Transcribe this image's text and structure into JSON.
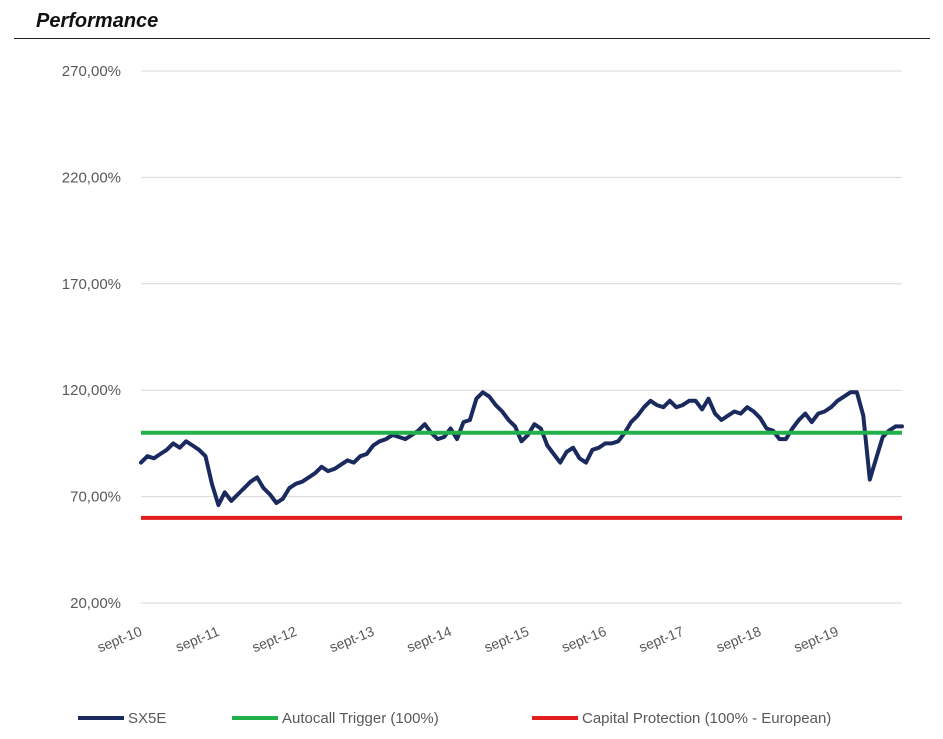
{
  "page_title": "Performance",
  "chart_data": {
    "type": "line",
    "title": "",
    "xlabel": "",
    "ylabel": "",
    "ylim": [
      20,
      270
    ],
    "xlim": [
      "2010-09",
      "2020-07"
    ],
    "grid": true,
    "legend_position": "bottom",
    "y_ticks": [
      "20,00%",
      "70,00%",
      "120,00%",
      "170,00%",
      "220,00%",
      "270,00%"
    ],
    "y_tick_values": [
      20,
      70,
      120,
      170,
      220,
      270
    ],
    "x_ticks": [
      "sept-10",
      "sept-11",
      "sept-12",
      "sept-13",
      "sept-14",
      "sept-15",
      "sept-16",
      "sept-17",
      "sept-18",
      "sept-19"
    ],
    "x_tick_dates": [
      "2010-09",
      "2011-09",
      "2012-09",
      "2013-09",
      "2014-09",
      "2015-09",
      "2016-09",
      "2017-09",
      "2018-09",
      "2019-09"
    ],
    "series": [
      {
        "name": "SX5E",
        "color": "#1b2a5e",
        "x": [
          "2010-09",
          "2010-10",
          "2010-11",
          "2010-12",
          "2011-01",
          "2011-02",
          "2011-03",
          "2011-04",
          "2011-05",
          "2011-06",
          "2011-07",
          "2011-08",
          "2011-09",
          "2011-10",
          "2011-11",
          "2011-12",
          "2012-01",
          "2012-02",
          "2012-03",
          "2012-04",
          "2012-05",
          "2012-06",
          "2012-07",
          "2012-08",
          "2012-09",
          "2012-10",
          "2012-11",
          "2012-12",
          "2013-01",
          "2013-02",
          "2013-03",
          "2013-04",
          "2013-05",
          "2013-06",
          "2013-07",
          "2013-08",
          "2013-09",
          "2013-10",
          "2013-11",
          "2013-12",
          "2014-01",
          "2014-02",
          "2014-03",
          "2014-04",
          "2014-05",
          "2014-06",
          "2014-07",
          "2014-08",
          "2014-09",
          "2014-10",
          "2014-11",
          "2014-12",
          "2015-01",
          "2015-02",
          "2015-03",
          "2015-04",
          "2015-05",
          "2015-06",
          "2015-07",
          "2015-08",
          "2015-09",
          "2015-10",
          "2015-11",
          "2015-12",
          "2016-01",
          "2016-02",
          "2016-03",
          "2016-04",
          "2016-05",
          "2016-06",
          "2016-07",
          "2016-08",
          "2016-09",
          "2016-10",
          "2016-11",
          "2016-12",
          "2017-01",
          "2017-02",
          "2017-03",
          "2017-04",
          "2017-05",
          "2017-06",
          "2017-07",
          "2017-08",
          "2017-09",
          "2017-10",
          "2017-11",
          "2017-12",
          "2018-01",
          "2018-02",
          "2018-03",
          "2018-04",
          "2018-05",
          "2018-06",
          "2018-07",
          "2018-08",
          "2018-09",
          "2018-10",
          "2018-11",
          "2018-12",
          "2019-01",
          "2019-02",
          "2019-03",
          "2019-04",
          "2019-05",
          "2019-06",
          "2019-07",
          "2019-08",
          "2019-09",
          "2019-10",
          "2019-11",
          "2019-12",
          "2020-01",
          "2020-02",
          "2020-03",
          "2020-04",
          "2020-05",
          "2020-06",
          "2020-07"
        ],
        "values": [
          86,
          89,
          88,
          90,
          92,
          95,
          93,
          96,
          94,
          92,
          89,
          76,
          66,
          72,
          68,
          71,
          74,
          77,
          79,
          74,
          71,
          67,
          69,
          74,
          76,
          77,
          79,
          81,
          84,
          82,
          83,
          85,
          87,
          86,
          89,
          90,
          94,
          96,
          97,
          99,
          98,
          97,
          99,
          101,
          104,
          100,
          97,
          98,
          102,
          97,
          105,
          106,
          116,
          119,
          117,
          113,
          110,
          106,
          103,
          96,
          99,
          104,
          102,
          94,
          90,
          86,
          91,
          93,
          88,
          86,
          92,
          93,
          95,
          95,
          96,
          100,
          105,
          108,
          112,
          115,
          113,
          112,
          115,
          112,
          113,
          115,
          115,
          111,
          116,
          109,
          106,
          108,
          110,
          109,
          112,
          110,
          107,
          102,
          101,
          97,
          97,
          102,
          106,
          109,
          105,
          109,
          110,
          112,
          115,
          117,
          119,
          119,
          108,
          78,
          88,
          98,
          101,
          103,
          103
        ]
      },
      {
        "name": "Autocall Trigger (100%)",
        "color": "#22b04a",
        "constant": 100
      },
      {
        "name": "Capital Protection (100% - European)",
        "color": "#e21d1d",
        "constant": 60
      }
    ]
  }
}
